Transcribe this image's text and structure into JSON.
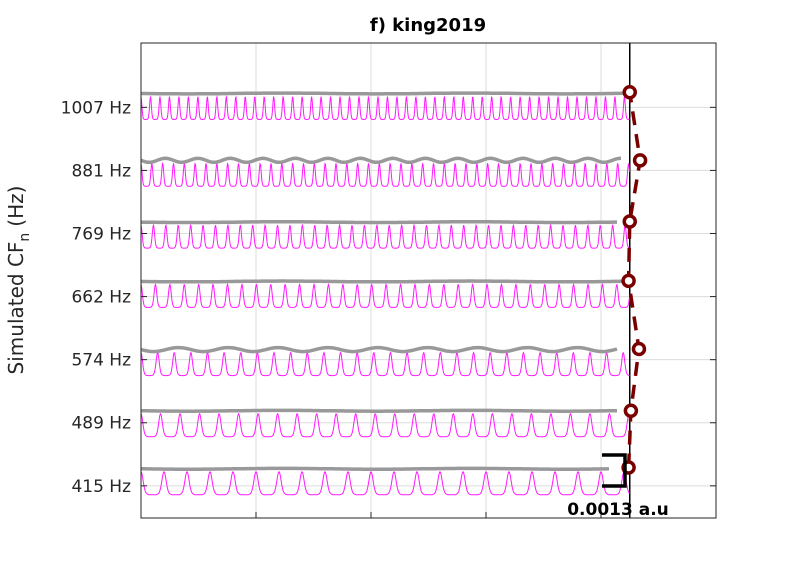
{
  "chart_data": {
    "type": "line",
    "title": "f) king2019",
    "xlabel": "",
    "ylabel": "Simulated CF",
    "ylabel_sub": "n",
    "ylabel_unit": "(Hz)",
    "xlim": [
      0,
      50
    ],
    "ylim": [
      -0.51,
      7.02
    ],
    "x_gridlines": [
      10,
      20,
      30,
      40
    ],
    "y_ticks": [
      0,
      1,
      2,
      3,
      4,
      5,
      6
    ],
    "y_tick_labels": [
      "415 Hz",
      "489 Hz",
      "574 Hz",
      "662 Hz",
      "769 Hz",
      "881 Hz",
      "1007 Hz"
    ],
    "grid": true,
    "reference_line_x": 42.5,
    "series": [
      {
        "name": "415 Hz",
        "freq": 415,
        "level": 0.27,
        "gray_end": 40.8,
        "wavy": false,
        "marker": [
          42.4,
          0.29
        ]
      },
      {
        "name": "489 Hz",
        "freq": 489,
        "level": 1.19,
        "gray_end": 41.5,
        "wavy": false,
        "marker": [
          42.6,
          1.19
        ]
      },
      {
        "name": "574 Hz",
        "freq": 574,
        "level": 2.16,
        "gray_end": 41.5,
        "wavy": true,
        "marker": [
          43.3,
          2.17
        ]
      },
      {
        "name": "662 Hz",
        "freq": 662,
        "level": 3.24,
        "gray_end": 42.5,
        "wavy": false,
        "marker": [
          42.4,
          3.25
        ]
      },
      {
        "name": "769 Hz",
        "freq": 769,
        "level": 4.18,
        "gray_end": 41.5,
        "wavy": false,
        "marker": [
          42.5,
          4.19
        ]
      },
      {
        "name": "881 Hz",
        "freq": 881,
        "level": 5.16,
        "gray_end": 41.8,
        "wavy": true,
        "marker": [
          43.4,
          5.16
        ]
      },
      {
        "name": "1007 Hz",
        "freq": 1007,
        "level": 6.22,
        "gray_end": 42.5,
        "wavy": false,
        "marker": [
          42.5,
          6.24
        ]
      }
    ],
    "scale_bar": {
      "label": "0.0013 a.u",
      "value": 0.0013
    },
    "colors": {
      "waveform": "#ff1aff",
      "envelope": "#999999",
      "marker": "#7a0000",
      "grid": "#dcdcdc"
    }
  }
}
